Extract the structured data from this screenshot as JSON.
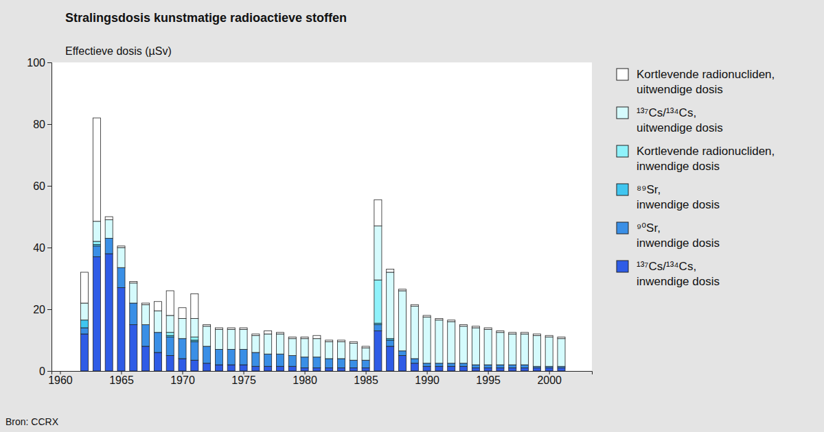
{
  "chart_data": {
    "type": "bar",
    "stacked": true,
    "title": "Stralingsdosis kunstmatige radioactieve stoffen",
    "y_label": "Effectieve dosis (µSv)",
    "source": "Bron: CCRX",
    "legend": "right",
    "x": [
      1962,
      1963,
      1964,
      1965,
      1966,
      1967,
      1968,
      1969,
      1970,
      1971,
      1972,
      1973,
      1974,
      1975,
      1976,
      1977,
      1978,
      1979,
      1980,
      1981,
      1982,
      1983,
      1984,
      1985,
      1986,
      1987,
      1988,
      1989,
      1990,
      1991,
      1992,
      1993,
      1994,
      1995,
      1996,
      1997,
      1998,
      1999,
      2000,
      2001
    ],
    "xlim": [
      1959.3,
      2003.5
    ],
    "xticks": [
      1960,
      1965,
      1970,
      1975,
      1980,
      1985,
      1990,
      1995,
      2000
    ],
    "ylim": [
      0,
      100
    ],
    "yticks": [
      0,
      20,
      40,
      60,
      80,
      100
    ],
    "series": [
      {
        "name": "¹³⁷Cs/¹³⁴Cs, inwendige dosis",
        "color": "#2f5ce6",
        "values": [
          12,
          37,
          38,
          27,
          15,
          8,
          6,
          5,
          4,
          3.5,
          2.5,
          2,
          2,
          2,
          1.5,
          1.5,
          1.5,
          1.5,
          1,
          1,
          1,
          1,
          1,
          1,
          13,
          8,
          5,
          2.5,
          1.5,
          1.5,
          1.5,
          1.5,
          1,
          1,
          1,
          1,
          1,
          1,
          1,
          1
        ]
      },
      {
        "name": "⁹⁰Sr, inwendige dosis",
        "color": "#3a8fe6",
        "values": [
          2,
          3.5,
          5,
          6.5,
          7,
          7,
          6.5,
          6,
          6.5,
          6,
          5.5,
          5,
          5,
          5,
          4.5,
          4,
          4,
          3.5,
          3.5,
          3.5,
          3,
          3,
          2.5,
          2.5,
          2,
          2,
          1.5,
          1.5,
          1,
          1,
          1,
          1,
          1,
          1,
          1,
          1,
          1,
          0.5,
          0.5,
          0.5
        ]
      },
      {
        "name": "⁸⁹Sr, inwendige dosis",
        "color": "#40c6f0",
        "values": [
          2.5,
          0.5,
          0,
          0,
          0,
          0,
          0,
          0.5,
          0,
          0.5,
          0,
          0,
          0,
          0,
          0,
          0,
          0,
          0,
          0,
          0,
          0,
          0,
          0,
          0,
          0.5,
          0.5,
          0,
          0,
          0,
          0,
          0,
          0,
          0,
          0,
          0,
          0,
          0,
          0,
          0,
          0
        ]
      },
      {
        "name": "Kortlevende radionucliden, inwendige dosis",
        "color": "#8ff2fb",
        "values": [
          0,
          1,
          0,
          0,
          0,
          0,
          0,
          1,
          0,
          1,
          0,
          0,
          0,
          0,
          0,
          0,
          0,
          0,
          0,
          0,
          0,
          0,
          0,
          0,
          14,
          0,
          0,
          0,
          0,
          0,
          0,
          0,
          0,
          0,
          0,
          0,
          0,
          0,
          0,
          0
        ]
      },
      {
        "name": "¹³⁷Cs/¹³⁴Cs, uitwendige dosis",
        "color": "#d5fbfd",
        "values": [
          5.5,
          6.5,
          6,
          6.5,
          6.5,
          6.5,
          7,
          5.5,
          6.5,
          6,
          6.5,
          6.5,
          6.5,
          6.5,
          5.5,
          6.5,
          6.5,
          5.5,
          6,
          6,
          5.5,
          5.5,
          5.5,
          4,
          17.5,
          21.5,
          19.5,
          17,
          15,
          14,
          13.5,
          12,
          12,
          11.5,
          10.5,
          10,
          10,
          10,
          9.5,
          9
        ]
      },
      {
        "name": "Kortlevende radionucliden, uitwendige dosis",
        "color": "#ffffff",
        "values": [
          10,
          33.5,
          1,
          0.5,
          0.5,
          0.5,
          3,
          8,
          3.5,
          8,
          0.5,
          0.5,
          0.5,
          0.5,
          0.5,
          1,
          0.5,
          0.5,
          0.5,
          1,
          0.5,
          0.5,
          0.5,
          0.5,
          8.5,
          1,
          0.5,
          0.5,
          0.5,
          0.5,
          0.5,
          0.5,
          0.5,
          0.5,
          0.5,
          0.5,
          0.5,
          0.5,
          0.5,
          0.5
        ]
      }
    ]
  }
}
